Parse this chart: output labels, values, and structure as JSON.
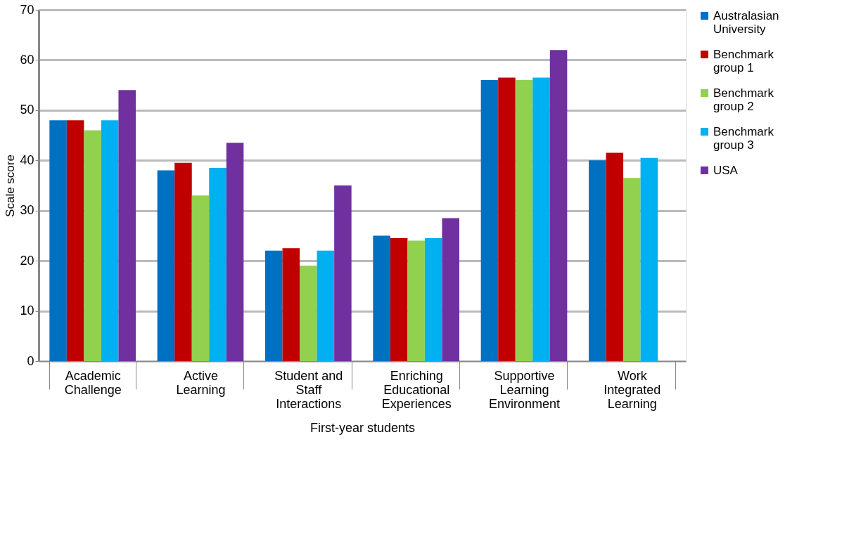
{
  "chart_data": {
    "type": "bar",
    "xlabel": "First-year students",
    "ylabel": "Scale score",
    "categories": [
      "Academic Challenge",
      "Active Learning",
      "Student and Staff Interactions",
      "Enriching Educational Experiences",
      "Supportive Learning Environment",
      "Work Integrated Learning"
    ],
    "series": [
      {
        "name": "Australasian University",
        "color": "#0070c0",
        "values": [
          48,
          38,
          22,
          25,
          56,
          40
        ]
      },
      {
        "name": "Benchmark group 1",
        "color": "#c00000",
        "values": [
          48,
          39.5,
          22.5,
          24.5,
          56.5,
          41.5
        ]
      },
      {
        "name": "Benchmark group 2",
        "color": "#92d050",
        "values": [
          46,
          33,
          19,
          24,
          56,
          36.5
        ]
      },
      {
        "name": "Benchmark group 3",
        "color": "#00b0f0",
        "values": [
          48,
          38.5,
          22,
          24.5,
          56.5,
          40.5
        ]
      },
      {
        "name": "USA",
        "color": "#7030a0",
        "values": [
          54,
          43.5,
          35,
          28.5,
          62,
          null
        ]
      }
    ],
    "ylim": [
      0,
      70
    ],
    "yticks": [
      0,
      10,
      20,
      30,
      40,
      50,
      60,
      70
    ],
    "grid": "y",
    "legend": "right"
  }
}
